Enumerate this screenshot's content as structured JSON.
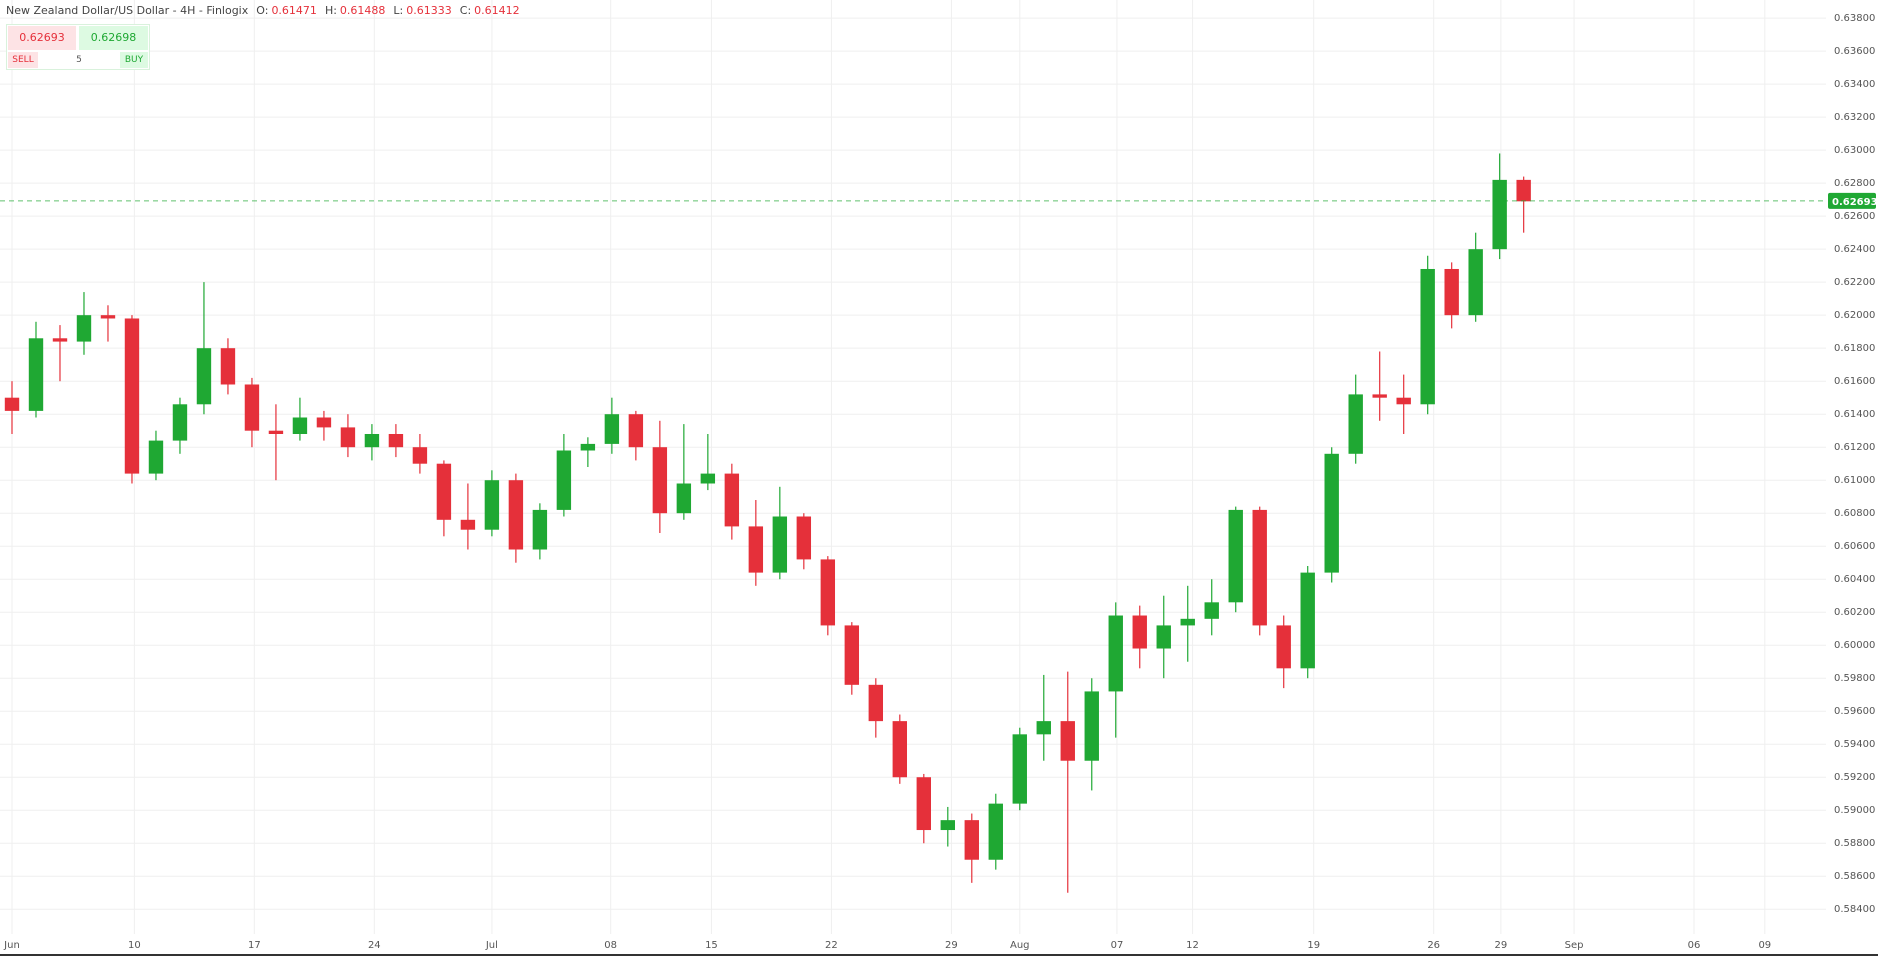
{
  "chart_data": {
    "type": "candlestick",
    "title": "New Zealand Dollar/US Dollar - 4H - Finlogix",
    "ohlc_legend": [
      {
        "label": "O:",
        "value": 0.61471
      },
      {
        "label": "H:",
        "value": 0.61488
      },
      {
        "label": "L:",
        "value": 0.61333
      },
      {
        "label": "C:",
        "value": 0.61412
      }
    ],
    "x": [
      0,
      1,
      2,
      3,
      4,
      5,
      6,
      7,
      8,
      9,
      10,
      11,
      12,
      13,
      14,
      15,
      16,
      17,
      18,
      19,
      20,
      21,
      22,
      23,
      24,
      25,
      26,
      27,
      28,
      29,
      30,
      31,
      32,
      33,
      34,
      35,
      36,
      37,
      38,
      39,
      40,
      41,
      42,
      43,
      44,
      45,
      46,
      47,
      48,
      49,
      50,
      51,
      52,
      53,
      54,
      55,
      56,
      57,
      58,
      59,
      60,
      61,
      62,
      63
    ],
    "open": [
      0.615,
      0.6142,
      0.6186,
      0.6184,
      0.62,
      0.6198,
      0.6104,
      0.6124,
      0.6146,
      0.618,
      0.6158,
      0.613,
      0.6128,
      0.6138,
      0.6132,
      0.612,
      0.6128,
      0.612,
      0.611,
      0.6076,
      0.607,
      0.61,
      0.6058,
      0.6082,
      0.6118,
      0.6122,
      0.614,
      0.612,
      0.608,
      0.6098,
      0.6104,
      0.6072,
      0.6044,
      0.6078,
      0.6052,
      0.6012,
      0.5976,
      0.5954,
      0.592,
      0.5888,
      0.5894,
      0.587,
      0.5904,
      0.5946,
      0.5954,
      0.593,
      0.5972,
      0.6018,
      0.5998,
      0.6012,
      0.6016,
      0.6026,
      0.6082,
      0.6012,
      0.5986,
      0.6044,
      0.6116,
      0.6152,
      0.615,
      0.6146,
      0.6228,
      0.62,
      0.624,
      0.6282
    ],
    "high": [
      0.616,
      0.6196,
      0.6194,
      0.6214,
      0.6206,
      0.62,
      0.613,
      0.615,
      0.622,
      0.6186,
      0.6162,
      0.6146,
      0.615,
      0.6142,
      0.614,
      0.6134,
      0.6134,
      0.6128,
      0.6112,
      0.6098,
      0.6106,
      0.6104,
      0.6086,
      0.6128,
      0.6126,
      0.615,
      0.6142,
      0.6136,
      0.6134,
      0.6128,
      0.611,
      0.6088,
      0.6096,
      0.608,
      0.6054,
      0.6014,
      0.598,
      0.5958,
      0.5922,
      0.5902,
      0.5898,
      0.591,
      0.595,
      0.5982,
      0.5984,
      0.598,
      0.6026,
      0.6024,
      0.603,
      0.6036,
      0.604,
      0.6084,
      0.6084,
      0.6018,
      0.6048,
      0.612,
      0.6164,
      0.6178,
      0.6164,
      0.6236,
      0.6232,
      0.625,
      0.6298,
      0.6284
    ],
    "low": [
      0.6128,
      0.6138,
      0.616,
      0.6176,
      0.6184,
      0.6098,
      0.61,
      0.6116,
      0.614,
      0.6152,
      0.612,
      0.61,
      0.6124,
      0.6124,
      0.6114,
      0.6112,
      0.6114,
      0.6104,
      0.6066,
      0.6058,
      0.6066,
      0.605,
      0.6052,
      0.6078,
      0.6108,
      0.6116,
      0.6112,
      0.6068,
      0.6076,
      0.6094,
      0.6064,
      0.6036,
      0.604,
      0.6046,
      0.6006,
      0.597,
      0.5944,
      0.5916,
      0.588,
      0.5878,
      0.5856,
      0.5864,
      0.59,
      0.593,
      0.585,
      0.5912,
      0.5944,
      0.5986,
      0.598,
      0.599,
      0.6006,
      0.602,
      0.6006,
      0.5974,
      0.598,
      0.6038,
      0.611,
      0.6136,
      0.6128,
      0.614,
      0.6192,
      0.6196,
      0.6234,
      0.625
    ],
    "close": [
      0.6142,
      0.6186,
      0.6184,
      0.62,
      0.6198,
      0.6104,
      0.6124,
      0.6146,
      0.618,
      0.6158,
      0.613,
      0.6128,
      0.6138,
      0.6132,
      0.612,
      0.6128,
      0.612,
      0.611,
      0.6076,
      0.607,
      0.61,
      0.6058,
      0.6082,
      0.6118,
      0.6122,
      0.614,
      0.612,
      0.608,
      0.6098,
      0.6104,
      0.6072,
      0.6044,
      0.6078,
      0.6052,
      0.6012,
      0.5976,
      0.5954,
      0.592,
      0.5888,
      0.5894,
      0.587,
      0.5904,
      0.5946,
      0.5954,
      0.593,
      0.5972,
      0.6018,
      0.5998,
      0.6012,
      0.6016,
      0.6026,
      0.6082,
      0.6012,
      0.5986,
      0.6044,
      0.6116,
      0.6152,
      0.615,
      0.6146,
      0.6228,
      0.62,
      0.624,
      0.6282,
      0.6269
    ],
    "up_color": "#1fa833",
    "down_color": "#e5303a",
    "last_price": 0.62693,
    "xlim": [
      -0.5,
      75.6
    ],
    "ylim": [
      0.5825,
      0.6391
    ],
    "grid": true,
    "xticks": [
      {
        "value": 0,
        "label": "Jun"
      },
      {
        "value": 5.1,
        "label": "10"
      },
      {
        "value": 10.1,
        "label": "17"
      },
      {
        "value": 15.1,
        "label": "24"
      },
      {
        "value": 20,
        "label": "Jul"
      },
      {
        "value": 24.95,
        "label": "08"
      },
      {
        "value": 29.15,
        "label": "15"
      },
      {
        "value": 34.15,
        "label": "22"
      },
      {
        "value": 39.15,
        "label": "29"
      },
      {
        "value": 42,
        "label": "Aug"
      },
      {
        "value": 46.05,
        "label": "07"
      },
      {
        "value": 49.2,
        "label": "12"
      },
      {
        "value": 54.25,
        "label": "19"
      },
      {
        "value": 59.25,
        "label": "26"
      },
      {
        "value": 62.05,
        "label": "29"
      },
      {
        "value": 65.1,
        "label": "Sep"
      },
      {
        "value": 70.1,
        "label": "06"
      },
      {
        "value": 73.05,
        "label": "09"
      }
    ],
    "yticks": [
      {
        "value": 0.584,
        "label": "0.58400"
      },
      {
        "value": 0.586,
        "label": "0.58600"
      },
      {
        "value": 0.588,
        "label": "0.58800"
      },
      {
        "value": 0.59,
        "label": "0.59000"
      },
      {
        "value": 0.592,
        "label": "0.59200"
      },
      {
        "value": 0.594,
        "label": "0.59400"
      },
      {
        "value": 0.596,
        "label": "0.59600"
      },
      {
        "value": 0.598,
        "label": "0.59800"
      },
      {
        "value": 0.6,
        "label": "0.60000"
      },
      {
        "value": 0.602,
        "label": "0.60200"
      },
      {
        "value": 0.604,
        "label": "0.60400"
      },
      {
        "value": 0.606,
        "label": "0.60600"
      },
      {
        "value": 0.608,
        "label": "0.60800"
      },
      {
        "value": 0.61,
        "label": "0.61000"
      },
      {
        "value": 0.612,
        "label": "0.61200"
      },
      {
        "value": 0.614,
        "label": "0.61400"
      },
      {
        "value": 0.616,
        "label": "0.61600"
      },
      {
        "value": 0.618,
        "label": "0.61800"
      },
      {
        "value": 0.62,
        "label": "0.62000"
      },
      {
        "value": 0.622,
        "label": "0.62200"
      },
      {
        "value": 0.624,
        "label": "0.62400"
      },
      {
        "value": 0.626,
        "label": "0.62600"
      },
      {
        "value": 0.628,
        "label": "0.62800"
      },
      {
        "value": 0.63,
        "label": "0.63000"
      },
      {
        "value": 0.632,
        "label": "0.63200"
      },
      {
        "value": 0.634,
        "label": "0.63400"
      },
      {
        "value": 0.636,
        "label": "0.63600"
      },
      {
        "value": 0.638,
        "label": "0.63800"
      }
    ]
  },
  "trade_panel": {
    "sell_price": 0.62693,
    "sell_label": "SELL",
    "quantity": 5,
    "buy_price": 0.62698,
    "buy_label": "BUY"
  }
}
